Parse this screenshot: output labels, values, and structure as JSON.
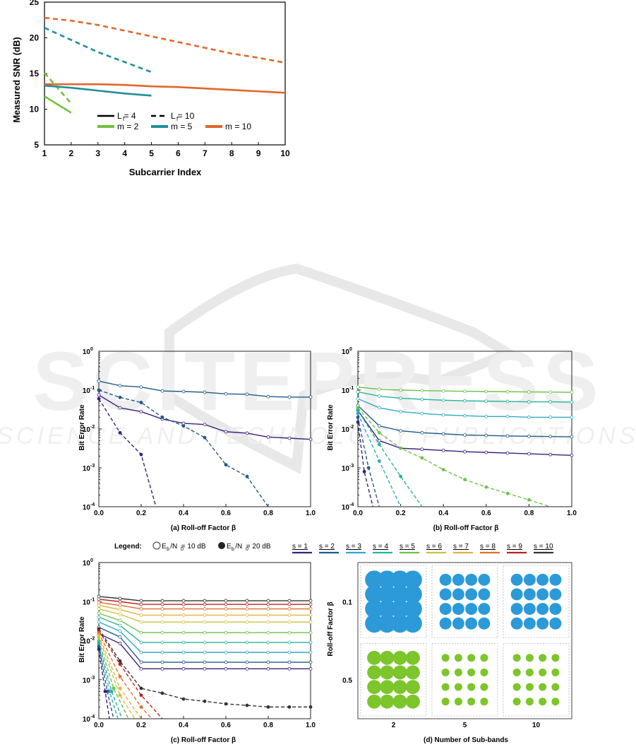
{
  "colors": {
    "s1": "#3b1f7a",
    "s2": "#1f5a8a",
    "s3": "#2fa9c8",
    "s4": "#22b59a",
    "s5": "#6cc24a",
    "s6": "#c9c43a",
    "s7": "#e8b13a",
    "s8": "#e06d2c",
    "s9": "#b3241f",
    "s10": "#333333",
    "green": "#72c03c",
    "teal": "#1f8f99",
    "orange": "#e2662b",
    "scatterBlue": "#2c9ad8",
    "scatterGreen": "#7cc52a"
  },
  "watermark": {
    "main": "SCITEPRESS",
    "sub": "SCIENCE AND TECHNOLOGY PUBLICATIONS"
  },
  "chart_data": [
    {
      "id": "snr",
      "type": "line",
      "title": "",
      "xlabel": "Subcarrier Index",
      "ylabel": "Measured SNR (dB)",
      "xlim": [
        1,
        10
      ],
      "ylim": [
        5,
        25
      ],
      "xticks": [
        "1",
        "2",
        "3",
        "4",
        "5",
        "6",
        "7",
        "8",
        "9",
        "10"
      ],
      "yticks": [
        "5",
        "10",
        "15",
        "20",
        "25"
      ],
      "legend": {
        "lf4": "L = 4",
        "lf10": "L = 10",
        "lfSub": "f",
        "m2": "m = 2",
        "m5": "m = 5",
        "m10": "m = 10"
      },
      "series": [
        {
          "name": "m=2, Lf=4",
          "color": "green",
          "dash": false,
          "x": [
            1,
            2
          ],
          "y": [
            11.8,
            9.5
          ]
        },
        {
          "name": "m=2, Lf=10",
          "color": "green",
          "dash": true,
          "x": [
            1,
            2
          ],
          "y": [
            15.1,
            10.8
          ]
        },
        {
          "name": "m=5, Lf=4",
          "color": "teal",
          "dash": false,
          "x": [
            1,
            2,
            3,
            4,
            5
          ],
          "y": [
            13.3,
            13.0,
            12.6,
            12.2,
            11.9
          ]
        },
        {
          "name": "m=5, Lf=10",
          "color": "teal",
          "dash": true,
          "x": [
            1,
            2,
            3,
            4,
            5
          ],
          "y": [
            21.4,
            19.7,
            18.0,
            16.6,
            15.2
          ]
        },
        {
          "name": "m=10, Lf=4",
          "color": "orange",
          "dash": false,
          "x": [
            1,
            2,
            3,
            4,
            5,
            6,
            7,
            8,
            9,
            10
          ],
          "y": [
            13.5,
            13.5,
            13.5,
            13.4,
            13.2,
            13.1,
            12.9,
            12.7,
            12.5,
            12.3
          ]
        },
        {
          "name": "m=10, Lf=10",
          "color": "orange",
          "dash": true,
          "x": [
            1,
            2,
            3,
            4,
            5,
            6,
            7,
            8,
            9,
            10
          ],
          "y": [
            22.8,
            22.4,
            21.8,
            21.0,
            20.2,
            19.4,
            18.6,
            17.8,
            17.2,
            16.5
          ]
        }
      ]
    },
    {
      "id": "ber_a",
      "type": "line",
      "xlabel": "(a) Roll-off Factor β",
      "ylabel": "Bit Error Rate",
      "xlim": [
        0,
        1
      ],
      "ylog": [
        -4,
        0
      ],
      "xticks": [
        "0.0",
        "0.2",
        "0.4",
        "0.6",
        "0.8",
        "1.0"
      ],
      "yexp": [
        "-4",
        "-3",
        "-2",
        "-1",
        "0"
      ],
      "series": [
        {
          "s": 2,
          "eb": 10,
          "x": [
            0,
            0.1,
            0.2,
            0.3,
            0.4,
            0.5,
            0.6,
            0.7,
            0.8,
            0.9,
            1.0
          ],
          "y": [
            0.17,
            0.13,
            0.12,
            0.095,
            0.092,
            0.088,
            0.08,
            0.078,
            0.068,
            0.066,
            0.066
          ]
        },
        {
          "s": 1,
          "eb": 10,
          "x": [
            0,
            0.1,
            0.2,
            0.3,
            0.4,
            0.5,
            0.6,
            0.7,
            0.8,
            0.9,
            1.0
          ],
          "y": [
            0.075,
            0.035,
            0.028,
            0.018,
            0.014,
            0.013,
            0.0085,
            0.0078,
            0.0062,
            0.0058,
            0.0054
          ]
        },
        {
          "s": 2,
          "eb": 20,
          "x": [
            0,
            0.1,
            0.2,
            0.3,
            0.4,
            0.5,
            0.6,
            0.7,
            0.8
          ],
          "y": [
            0.1,
            0.065,
            0.048,
            0.02,
            0.012,
            0.006,
            0.0012,
            0.0006,
            0.0001
          ]
        },
        {
          "s": 1,
          "eb": 20,
          "x": [
            0,
            0.1,
            0.2,
            0.27
          ],
          "y": [
            0.06,
            0.008,
            0.0022,
            0.0001
          ]
        }
      ]
    },
    {
      "id": "ber_b",
      "type": "line",
      "xlabel": "(b) Roll-off Factor β",
      "ylabel": "Bit Error Rate",
      "xlim": [
        0,
        1
      ],
      "ylog": [
        -4,
        0
      ],
      "xticks": [
        "0.0",
        "0.2",
        "0.4",
        "0.6",
        "0.8",
        "1.0"
      ],
      "yexp": [
        "-4",
        "-3",
        "-2",
        "-1",
        "0"
      ],
      "series": [
        {
          "s": 5,
          "eb": 10,
          "x": [
            0,
            0.1,
            0.2,
            0.3,
            0.4,
            0.5,
            0.6,
            0.7,
            0.8,
            0.9,
            1.0
          ],
          "y": [
            0.12,
            0.105,
            0.1,
            0.097,
            0.095,
            0.093,
            0.092,
            0.091,
            0.09,
            0.089,
            0.088
          ]
        },
        {
          "s": 4,
          "eb": 10,
          "x": [
            0,
            0.1,
            0.2,
            0.3,
            0.4,
            0.5,
            0.6,
            0.7,
            0.8,
            0.9,
            1.0
          ],
          "y": [
            0.09,
            0.07,
            0.062,
            0.058,
            0.055,
            0.053,
            0.052,
            0.051,
            0.05,
            0.05,
            0.049
          ]
        },
        {
          "s": 3,
          "eb": 10,
          "x": [
            0,
            0.1,
            0.2,
            0.3,
            0.4,
            0.5,
            0.6,
            0.7,
            0.8,
            0.9,
            1.0
          ],
          "y": [
            0.06,
            0.035,
            0.028,
            0.025,
            0.023,
            0.022,
            0.021,
            0.021,
            0.02,
            0.02,
            0.02
          ]
        },
        {
          "s": 2,
          "eb": 10,
          "x": [
            0,
            0.1,
            0.2,
            0.3,
            0.4,
            0.5,
            0.6,
            0.7,
            0.8,
            0.9,
            1.0
          ],
          "y": [
            0.04,
            0.012,
            0.009,
            0.008,
            0.0075,
            0.007,
            0.0068,
            0.0066,
            0.0065,
            0.0064,
            0.0063
          ]
        },
        {
          "s": 1,
          "eb": 10,
          "x": [
            0,
            0.1,
            0.2,
            0.3,
            0.4,
            0.5,
            0.6,
            0.7,
            0.8,
            0.9,
            1.0
          ],
          "y": [
            0.03,
            0.005,
            0.0032,
            0.003,
            0.0028,
            0.0026,
            0.0025,
            0.0024,
            0.0023,
            0.0022,
            0.0021
          ]
        },
        {
          "s": 5,
          "eb": 20,
          "x": [
            0,
            0.1,
            0.2,
            0.3,
            0.4,
            0.5,
            0.6,
            0.7,
            0.8,
            0.9
          ],
          "y": [
            0.035,
            0.008,
            0.0032,
            0.0018,
            0.0009,
            0.0005,
            0.00032,
            0.00022,
            0.00015,
            0.0001
          ]
        },
        {
          "s": 4,
          "eb": 20,
          "x": [
            0,
            0.1,
            0.2,
            0.3
          ],
          "y": [
            0.03,
            0.004,
            0.0006,
            0.0001
          ]
        },
        {
          "s": 3,
          "eb": 20,
          "x": [
            0,
            0.1,
            0.2
          ],
          "y": [
            0.025,
            0.0015,
            0.0001
          ]
        },
        {
          "s": 2,
          "eb": 20,
          "x": [
            0,
            0.05,
            0.1
          ],
          "y": [
            0.02,
            0.001,
            0.0001
          ]
        },
        {
          "s": 1,
          "eb": 20,
          "x": [
            0,
            0.03,
            0.07
          ],
          "y": [
            0.015,
            0.0008,
            0.0001
          ]
        }
      ]
    },
    {
      "id": "ber_c",
      "type": "line",
      "xlabel": "(c) Roll-off Factor β",
      "ylabel": "Bit Error Rate",
      "xlim": [
        0,
        1
      ],
      "ylog": [
        -4,
        0
      ],
      "xticks": [
        "0.0",
        "0.2",
        "0.4",
        "0.6",
        "0.8",
        "1.0"
      ],
      "yexp": [
        "-4",
        "-3",
        "-2",
        "-1",
        "0"
      ],
      "series10": [
        {
          "s": 10,
          "start": 0.135,
          "end": 0.105
        },
        {
          "s": 9,
          "start": 0.115,
          "end": 0.085
        },
        {
          "s": 8,
          "start": 0.095,
          "end": 0.065
        },
        {
          "s": 7,
          "start": 0.08,
          "end": 0.045
        },
        {
          "s": 6,
          "start": 0.065,
          "end": 0.03
        },
        {
          "s": 5,
          "start": 0.05,
          "end": 0.016
        },
        {
          "s": 4,
          "start": 0.04,
          "end": 0.009
        },
        {
          "s": 3,
          "start": 0.03,
          "end": 0.005
        },
        {
          "s": 2,
          "start": 0.022,
          "end": 0.0028
        },
        {
          "s": 1,
          "start": 0.015,
          "end": 0.0019
        }
      ],
      "series20": [
        {
          "s": 10,
          "x": [
            0,
            0.1,
            0.2,
            0.3,
            0.4,
            0.5,
            0.6,
            0.7,
            0.8,
            0.9,
            1.0
          ],
          "y": [
            0.02,
            0.003,
            0.0006,
            0.00045,
            0.00032,
            0.00028,
            0.00024,
            0.00022,
            0.0002,
            0.0002,
            0.0002
          ]
        },
        {
          "s": 9,
          "x": [
            0,
            0.1,
            0.2,
            0.3
          ],
          "y": [
            0.018,
            0.0025,
            0.0004,
            0.0001
          ]
        },
        {
          "s": 8,
          "x": [
            0,
            0.1,
            0.2,
            0.25
          ],
          "y": [
            0.016,
            0.0012,
            0.0002,
            0.0001
          ]
        },
        {
          "s": 7,
          "x": [
            0,
            0.1,
            0.2
          ],
          "y": [
            0.014,
            0.0006,
            0.0001
          ]
        },
        {
          "s": 6,
          "x": [
            0,
            0.1,
            0.17
          ],
          "y": [
            0.012,
            0.0004,
            0.0001
          ]
        },
        {
          "s": 5,
          "x": [
            0,
            0.07,
            0.14
          ],
          "y": [
            0.01,
            0.0006,
            0.0001
          ]
        },
        {
          "s": 4,
          "x": [
            0,
            0.06,
            0.11
          ],
          "y": [
            0.009,
            0.0005,
            0.0001
          ]
        },
        {
          "s": 3,
          "x": [
            0,
            0.05,
            0.09
          ],
          "y": [
            0.008,
            0.0005,
            0.0001
          ]
        },
        {
          "s": 2,
          "x": [
            0,
            0.04,
            0.07
          ],
          "y": [
            0.007,
            0.0005,
            0.0001
          ]
        },
        {
          "s": 1,
          "x": [
            0,
            0.03,
            0.05
          ],
          "y": [
            0.006,
            0.0005,
            0.0001
          ]
        }
      ]
    },
    {
      "id": "constellation",
      "type": "scatter",
      "xlabel": "(d) Number of Sub-bands",
      "ylabel": "Roll-off Factor β",
      "cols": [
        "2",
        "5",
        "10"
      ],
      "rows": [
        "0.1",
        "0.5"
      ],
      "grid": "4x4 QAM constellation per panel"
    }
  ],
  "legend_mid": {
    "title": "Legend:",
    "eb10": "E  /N  = 10 dB",
    "eb20": "E  /N  = 20 dB",
    "eb_sub": "b",
    "n_sub": "0",
    "s_labels": [
      "s = 1",
      "s = 2",
      "s = 3",
      "s = 4",
      "s = 5",
      "s = 6",
      "s = 7",
      "s = 8",
      "s = 9",
      "s = 10"
    ]
  }
}
